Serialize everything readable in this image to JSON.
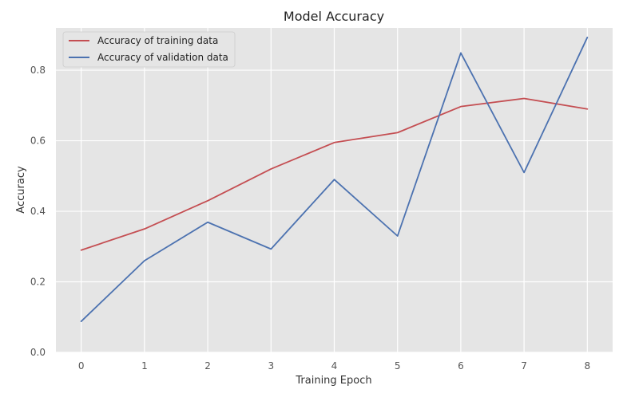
{
  "chart_data": {
    "type": "line",
    "title": "Model Accuracy",
    "xlabel": "Training Epoch",
    "ylabel": "Accuracy",
    "x": [
      0,
      1,
      2,
      3,
      4,
      5,
      6,
      7,
      8
    ],
    "xticks": [
      "0",
      "1",
      "2",
      "3",
      "4",
      "5",
      "6",
      "7",
      "8"
    ],
    "yticks": [
      "0.0",
      "0.2",
      "0.4",
      "0.6",
      "0.8"
    ],
    "xlim": [
      -0.4,
      8.4
    ],
    "ylim": [
      0.0,
      0.92
    ],
    "grid": true,
    "legend_position": "top-left",
    "background_color": "#e5e5e5",
    "series": [
      {
        "name": "Accuracy of training data",
        "color": "#c44e52",
        "values": [
          0.29,
          0.35,
          0.43,
          0.52,
          0.595,
          0.623,
          0.697,
          0.72,
          0.69
        ]
      },
      {
        "name": "Accuracy of validation data",
        "color": "#4c72b0",
        "values": [
          0.088,
          0.26,
          0.369,
          0.293,
          0.49,
          0.33,
          0.849,
          0.51,
          0.893
        ]
      }
    ]
  }
}
